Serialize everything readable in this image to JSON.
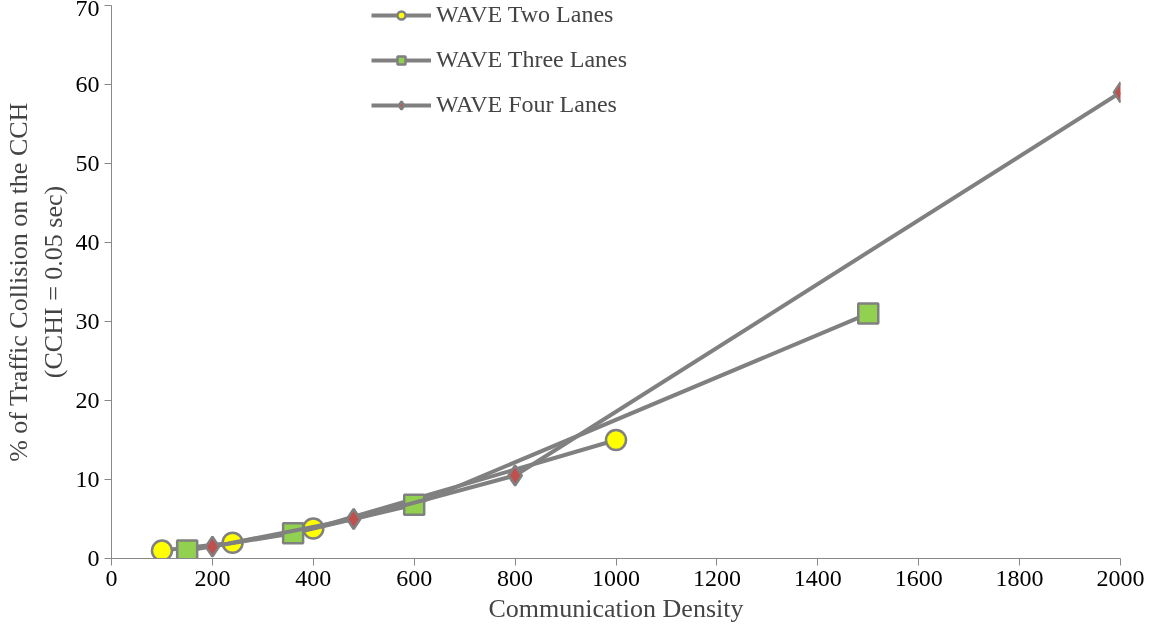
{
  "chart_data": {
    "type": "line",
    "xlabel": "Communication Density",
    "ylabel": "% of Traffic Collision on the CCH\n(CCHI = 0.05 sec)",
    "series": [
      {
        "name": "WAVE Two Lanes",
        "color": "#ffff00",
        "marker": "circle",
        "x": [
          100,
          240,
          400,
          1000
        ],
        "values": [
          1,
          2,
          3.8,
          15
        ]
      },
      {
        "name": "WAVE Three Lanes",
        "color": "#92d050",
        "marker": "square",
        "x": [
          150,
          360,
          600,
          1500
        ],
        "values": [
          1,
          3.2,
          6.8,
          31
        ]
      },
      {
        "name": "WAVE Four Lanes",
        "color": "#c0504d",
        "marker": "diamond",
        "x": [
          200,
          480,
          800,
          2000
        ],
        "values": [
          1.5,
          5,
          10.5,
          59
        ]
      }
    ],
    "xlim": [
      0,
      2000
    ],
    "xticks": [
      0,
      200,
      400,
      600,
      800,
      1000,
      1200,
      1400,
      1600,
      1800,
      2000
    ],
    "ylim": [
      0,
      70
    ],
    "yticks": [
      0,
      10,
      20,
      30,
      40,
      50,
      60,
      70
    ],
    "grid": false,
    "legend": "top",
    "line_style": "solid"
  }
}
